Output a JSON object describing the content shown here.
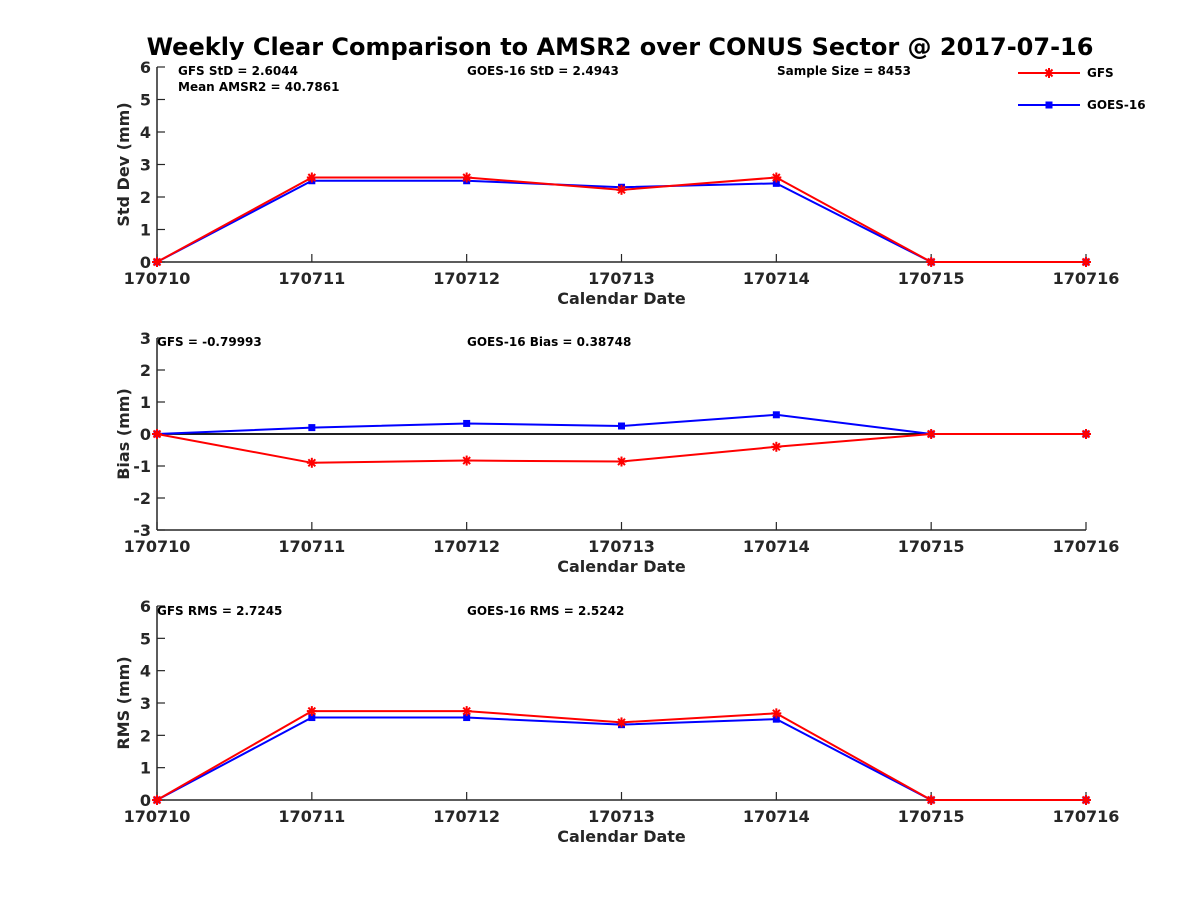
{
  "figure_title": "Weekly Clear Comparison to AMSR2 over CONUS Sector @ 2017-07-16",
  "legend": [
    {
      "label": "GFS",
      "color": "#ff0000",
      "marker": "asterisk"
    },
    {
      "label": "GOES-16",
      "color": "#0000ff",
      "marker": "square"
    }
  ],
  "chart_data": [
    {
      "type": "line",
      "categories": [
        "170710",
        "170711",
        "170712",
        "170713",
        "170714",
        "170715",
        "170716"
      ],
      "series": [
        {
          "name": "GFS",
          "values": [
            0,
            2.6,
            2.6,
            2.22,
            2.6,
            0,
            0
          ]
        },
        {
          "name": "GOES-16",
          "values": [
            0,
            2.5,
            2.5,
            2.3,
            2.42,
            0,
            0
          ]
        }
      ],
      "xlabel": "Calendar Date",
      "ylabel": "Std Dev (mm)",
      "ylim": [
        0,
        6
      ],
      "yticks": [
        0,
        1,
        2,
        3,
        4,
        5,
        6
      ],
      "annotations": [
        "GFS StD = 2.6044",
        "Mean AMSR2 = 40.7861",
        "GOES-16 StD = 2.4943",
        "Sample Size = 8453"
      ],
      "zero_line": false
    },
    {
      "type": "line",
      "categories": [
        "170710",
        "170711",
        "170712",
        "170713",
        "170714",
        "170715",
        "170716"
      ],
      "series": [
        {
          "name": "GFS",
          "values": [
            0,
            -0.9,
            -0.83,
            -0.86,
            -0.4,
            0,
            0
          ]
        },
        {
          "name": "GOES-16",
          "values": [
            0,
            0.2,
            0.33,
            0.25,
            0.6,
            0,
            0
          ]
        }
      ],
      "xlabel": "Calendar Date",
      "ylabel": "Bias (mm)",
      "ylim": [
        -3,
        3
      ],
      "yticks": [
        -3,
        -2,
        -1,
        0,
        1,
        2,
        3
      ],
      "annotations": [
        "GFS = -0.79993",
        "GOES-16 Bias  = 0.38748"
      ],
      "zero_line": true
    },
    {
      "type": "line",
      "categories": [
        "170710",
        "170711",
        "170712",
        "170713",
        "170714",
        "170715",
        "170716"
      ],
      "series": [
        {
          "name": "GFS",
          "values": [
            0,
            2.75,
            2.75,
            2.4,
            2.68,
            0,
            0
          ]
        },
        {
          "name": "GOES-16",
          "values": [
            0,
            2.55,
            2.55,
            2.33,
            2.5,
            0,
            0
          ]
        }
      ],
      "xlabel": "Calendar Date",
      "ylabel": "RMS (mm)",
      "ylim": [
        0,
        6
      ],
      "yticks": [
        0,
        1,
        2,
        3,
        4,
        5,
        6
      ],
      "annotations": [
        "GFS RMS = 2.7245",
        "GOES-16 RMS = 2.5242"
      ],
      "zero_line": false
    }
  ]
}
